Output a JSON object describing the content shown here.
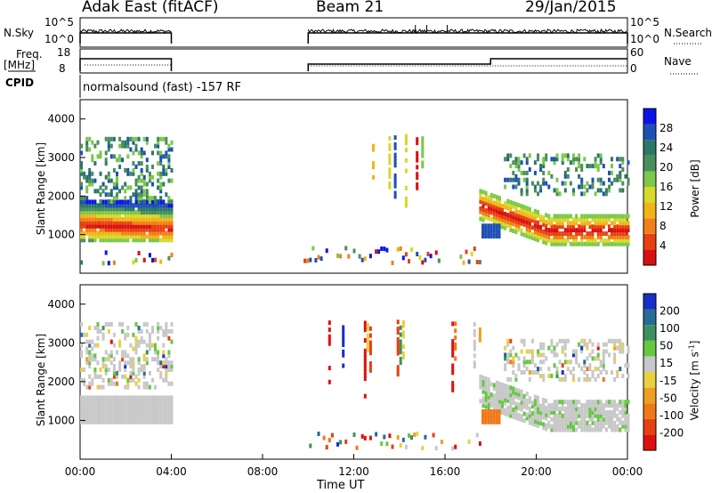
{
  "header": {
    "station": "Adak East (fitACF)",
    "beam": "Beam 21",
    "date": "29/Jan/2015"
  },
  "panels": {
    "nsky": {
      "label": "N.Sky",
      "right_label": "N.Search",
      "left_ticks": [
        "10^5",
        "10^0"
      ],
      "right_ticks": [
        "10^5",
        "10^0"
      ]
    },
    "freq": {
      "label": "Freq.",
      "unit": "[MHz]",
      "right_label": "Nave",
      "left_ticks": [
        "18",
        "8"
      ],
      "right_ticks": [
        "60",
        "0"
      ]
    },
    "cpid": {
      "label": "CPID",
      "text": "normalsound (fast) -157 RF"
    }
  },
  "chart_data": [
    {
      "type": "heatmap",
      "name": "power",
      "ylabel": "Slant Range [km]",
      "ylim": [
        0,
        4500
      ],
      "yticks": [
        1000,
        2000,
        3000,
        4000
      ],
      "xlim": [
        0,
        24
      ],
      "colorbar": {
        "label": "Power [dB]",
        "ticks": [
          "4",
          "8",
          "12",
          "16",
          "20",
          "24",
          "28"
        ],
        "colors": [
          "#0a14e6",
          "#1e50b4",
          "#2a7868",
          "#4a8e5a",
          "#7bc84a",
          "#d8d82a",
          "#f0b418",
          "#f08018",
          "#e84012",
          "#d81010"
        ]
      },
      "segments": [
        {
          "x": [
            0,
            4
          ],
          "note": "strong band near 1000-1500 km, scatter up to 3500 km"
        },
        {
          "x": [
            9.8,
            18
          ],
          "note": "sparse vertical streaks"
        },
        {
          "x": [
            17.5,
            24
          ],
          "note": "band descending from 1700 to 1000 km, upper echoes 2000-3000 km"
        }
      ]
    },
    {
      "type": "heatmap",
      "name": "velocity",
      "ylabel": "Slant Range [km]",
      "ylim": [
        0,
        4500
      ],
      "yticks": [
        1000,
        2000,
        3000,
        4000
      ],
      "xlim": [
        0,
        24
      ],
      "colorbar": {
        "label": "Velocity [m s^-1]",
        "ticks": [
          "200",
          "100",
          "50",
          "15",
          "-15",
          "-50",
          "-100",
          "-200"
        ],
        "colors": [
          "#1830c8",
          "#2a6a98",
          "#3c9060",
          "#64c840",
          "#c8c8c8",
          "#e8d040",
          "#f0a020",
          "#f07818",
          "#e84010",
          "#e01010"
        ]
      }
    }
  ],
  "xaxis": {
    "label": "Time UT",
    "ticks": [
      "00:00",
      "04:00",
      "08:00",
      "12:00",
      "16:00",
      "20:00",
      "00:00"
    ]
  }
}
